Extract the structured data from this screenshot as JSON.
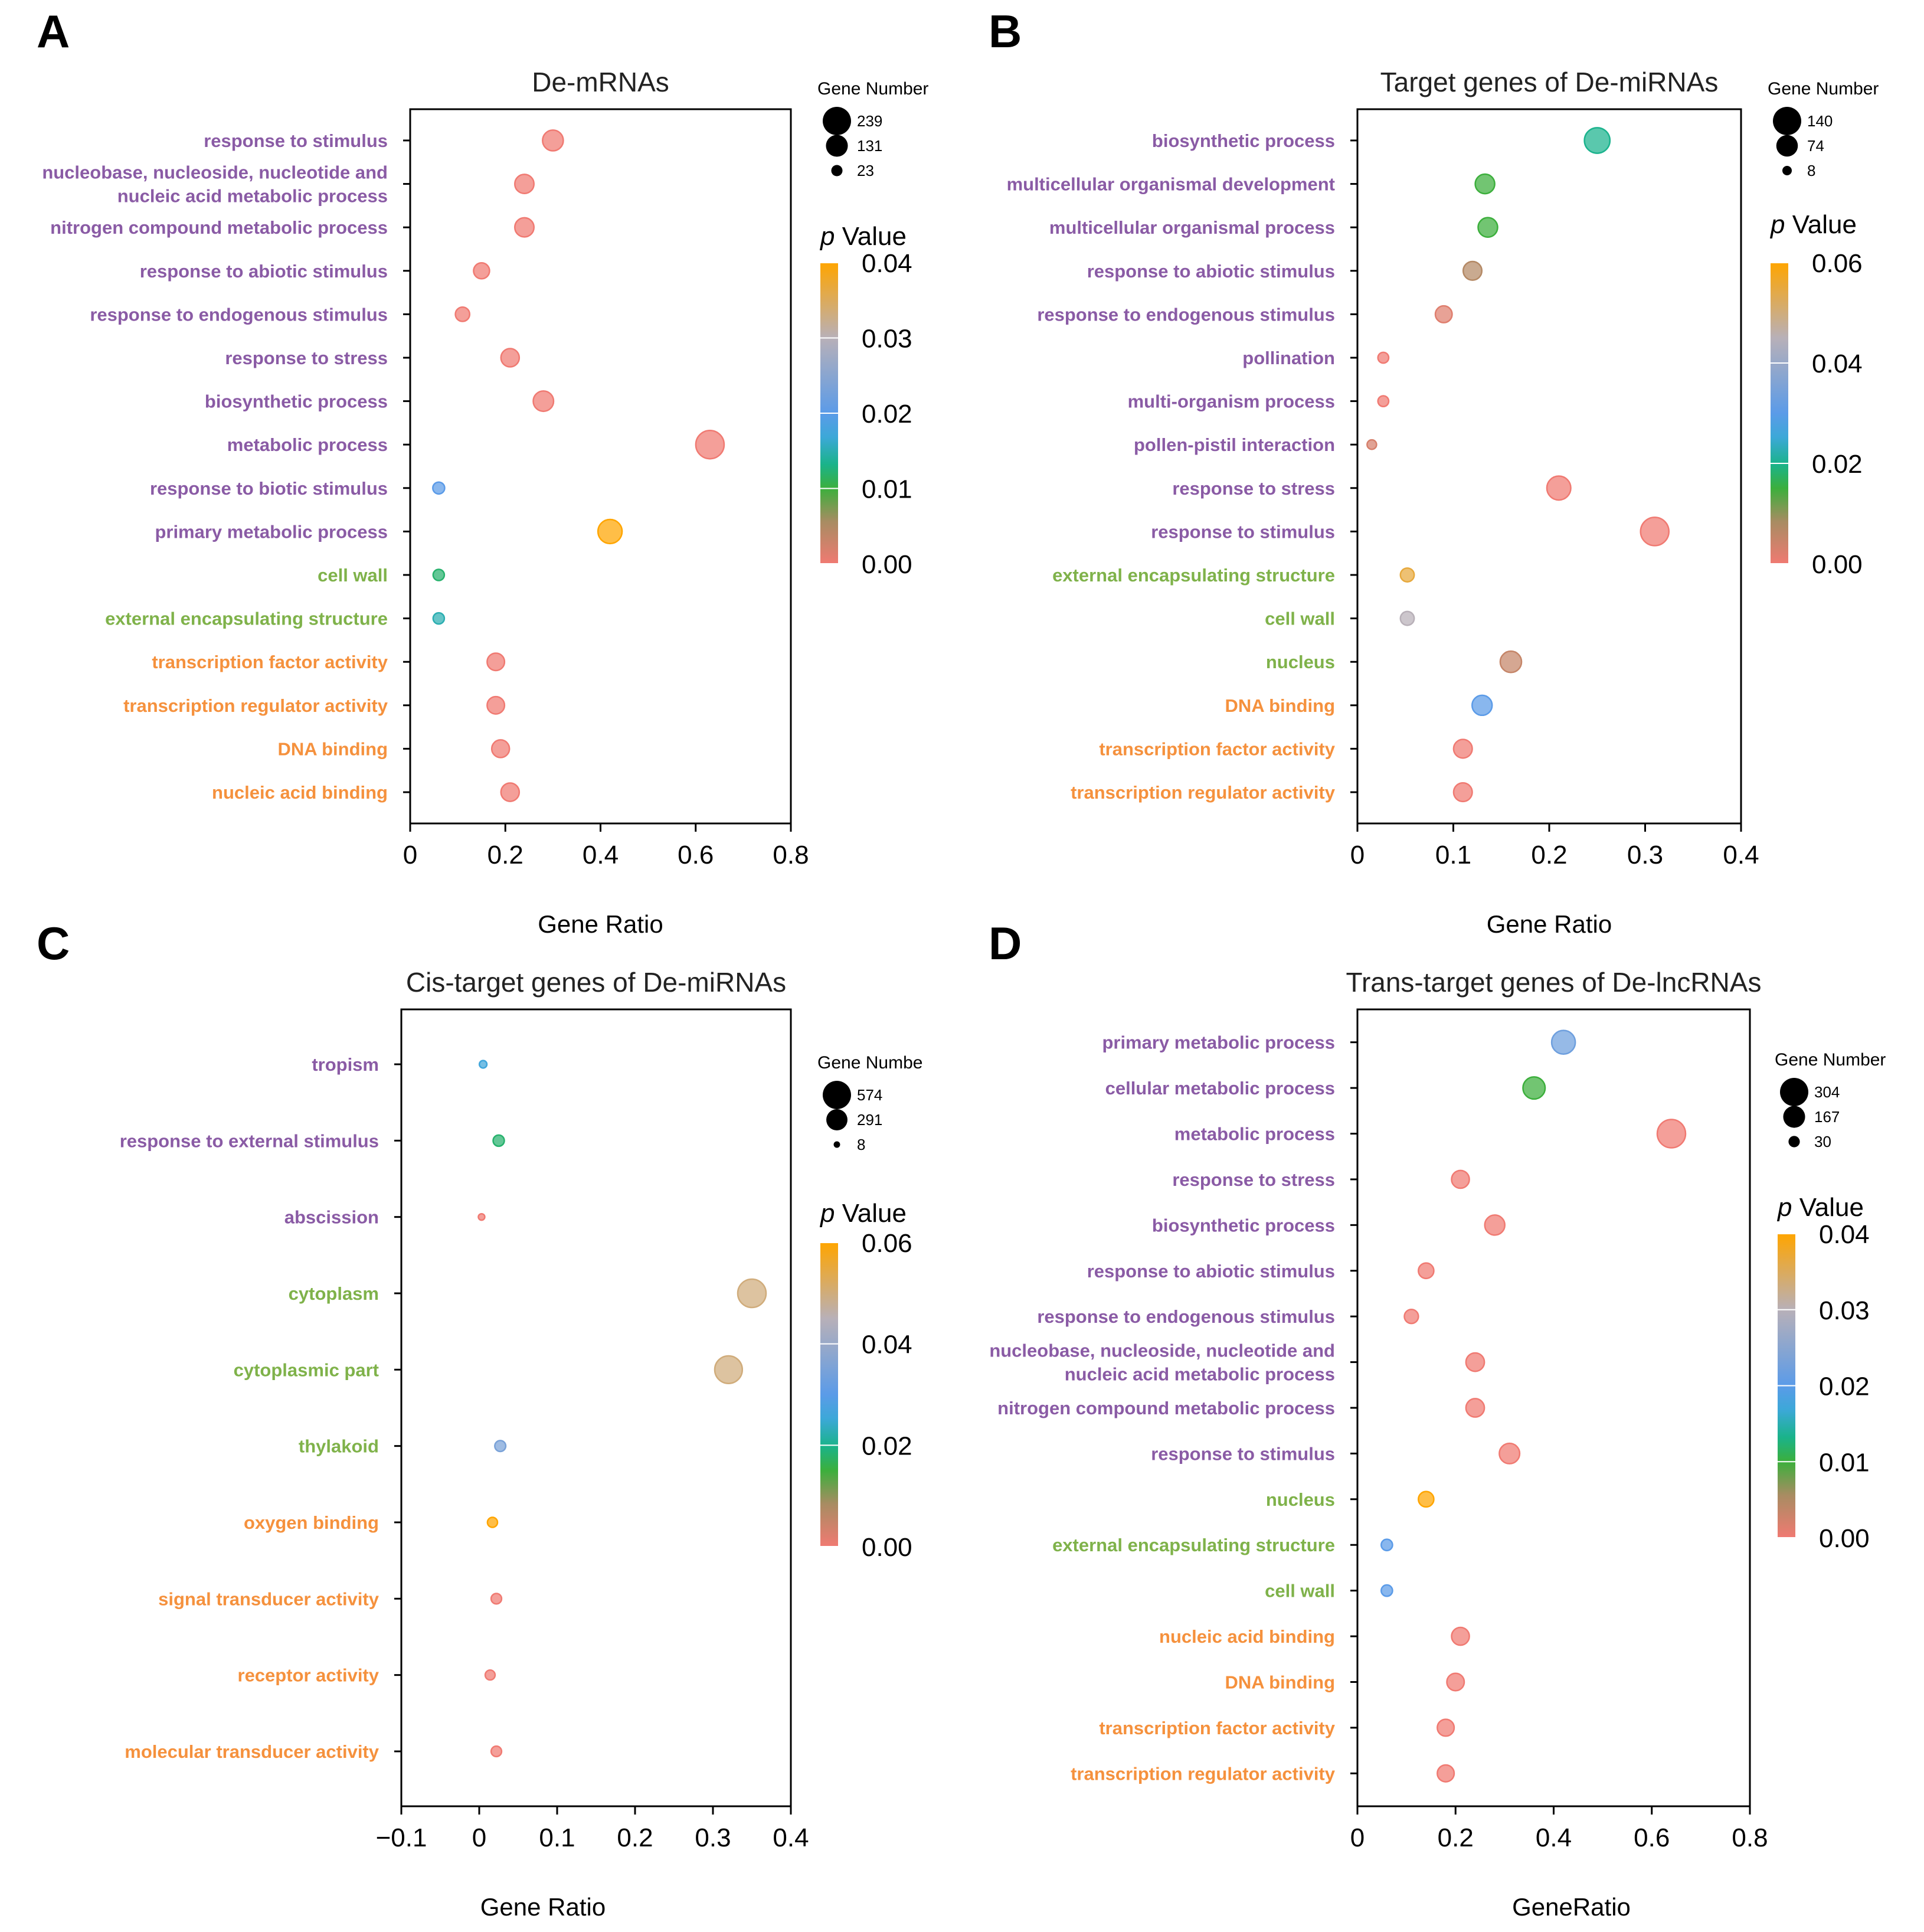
{
  "colors": {
    "bp": "#8a5ba5",
    "cc": "#7fb24a",
    "mf": "#f5913d"
  },
  "chart_data": [
    {
      "letter": "A",
      "type": "scatter",
      "title": "De-mRNAs",
      "xlabel": "Gene Ratio",
      "ylabel": "",
      "xlim": [
        0,
        0.8
      ],
      "xticks": [
        0,
        0.2,
        0.4,
        0.6,
        0.8
      ],
      "xtick_labels": [
        "0",
        "0.2",
        "0.4",
        "0.6",
        "0.8"
      ],
      "size_legend": {
        "title": "Gene Number",
        "values": [
          239,
          131,
          23
        ]
      },
      "color_legend": {
        "title_p": "p",
        "title_rest": " Value",
        "ticks": [
          0.04,
          0.03,
          0.02,
          0.01,
          0.0
        ],
        "tick_labels": [
          "0.04",
          "0.03",
          "0.02",
          "0.01",
          "0.00"
        ],
        "max": 0.04
      },
      "terms": [
        {
          "label": [
            "response to stimulus"
          ],
          "category": "bp",
          "ratio": 0.3,
          "count": 115,
          "p": 0.0
        },
        {
          "label": [
            "nucleobase, nucleoside, nucleotide and",
            "nucleic acid metabolic process"
          ],
          "category": "bp",
          "ratio": 0.24,
          "count": 95,
          "p": 0.0
        },
        {
          "label": [
            "nitrogen compound metabolic process"
          ],
          "category": "bp",
          "ratio": 0.24,
          "count": 95,
          "p": 0.0
        },
        {
          "label": [
            "response to abiotic stimulus"
          ],
          "category": "bp",
          "ratio": 0.15,
          "count": 60,
          "p": 0.0
        },
        {
          "label": [
            "response to endogenous stimulus"
          ],
          "category": "bp",
          "ratio": 0.11,
          "count": 45,
          "p": 0.0
        },
        {
          "label": [
            "response to stress"
          ],
          "category": "bp",
          "ratio": 0.21,
          "count": 85,
          "p": 0.0
        },
        {
          "label": [
            "biosynthetic process"
          ],
          "category": "bp",
          "ratio": 0.28,
          "count": 110,
          "p": 0.0
        },
        {
          "label": [
            "metabolic process"
          ],
          "category": "bp",
          "ratio": 0.63,
          "count": 239,
          "p": 0.0
        },
        {
          "label": [
            "response to biotic stimulus"
          ],
          "category": "bp",
          "ratio": 0.06,
          "count": 27,
          "p": 0.02
        },
        {
          "label": [
            "primary metabolic process"
          ],
          "category": "bp",
          "ratio": 0.42,
          "count": 165,
          "p": 0.04
        },
        {
          "label": [
            "cell wall"
          ],
          "category": "cc",
          "ratio": 0.06,
          "count": 23,
          "p": 0.012
        },
        {
          "label": [
            "external encapsulating structure"
          ],
          "category": "cc",
          "ratio": 0.06,
          "count": 23,
          "p": 0.015
        },
        {
          "label": [
            "transcription factor activity"
          ],
          "category": "mf",
          "ratio": 0.18,
          "count": 75,
          "p": 0.0
        },
        {
          "label": [
            "transcription regulator activity"
          ],
          "category": "mf",
          "ratio": 0.18,
          "count": 75,
          "p": 0.0
        },
        {
          "label": [
            "DNA binding"
          ],
          "category": "mf",
          "ratio": 0.19,
          "count": 78,
          "p": 0.0
        },
        {
          "label": [
            "nucleic acid binding"
          ],
          "category": "mf",
          "ratio": 0.21,
          "count": 85,
          "p": 0.0
        }
      ]
    },
    {
      "letter": "B",
      "type": "scatter",
      "title": "Target genes of De-miRNAs",
      "xlabel": "Gene Ratio",
      "ylabel": "",
      "xlim": [
        0,
        0.4
      ],
      "xticks": [
        0,
        0.1,
        0.2,
        0.3,
        0.4
      ],
      "xtick_labels": [
        "0",
        "0.1",
        "0.2",
        "0.3",
        "0.4"
      ],
      "size_legend": {
        "title": "Gene Number",
        "values": [
          140,
          74,
          8
        ]
      },
      "color_legend": {
        "title_p": "p",
        "title_rest": " Value",
        "ticks": [
          0.06,
          0.04,
          0.02,
          0.0
        ],
        "tick_labels": [
          "0.06",
          "0.04",
          "0.02",
          "0.00"
        ],
        "max": 0.06
      },
      "terms": [
        {
          "label": [
            "biosynthetic process"
          ],
          "category": "bp",
          "ratio": 0.25,
          "count": 110,
          "p": 0.02
        },
        {
          "label": [
            "multicellular organismal development"
          ],
          "category": "bp",
          "ratio": 0.133,
          "count": 58,
          "p": 0.015
        },
        {
          "label": [
            "multicellular organismal process"
          ],
          "category": "bp",
          "ratio": 0.136,
          "count": 58,
          "p": 0.015
        },
        {
          "label": [
            "response to abiotic stimulus"
          ],
          "category": "bp",
          "ratio": 0.12,
          "count": 52,
          "p": 0.007
        },
        {
          "label": [
            "response to endogenous stimulus"
          ],
          "category": "bp",
          "ratio": 0.09,
          "count": 40,
          "p": 0.002
        },
        {
          "label": [
            "pollination"
          ],
          "category": "bp",
          "ratio": 0.027,
          "count": 12,
          "p": 0.0
        },
        {
          "label": [
            "multi-organism process"
          ],
          "category": "bp",
          "ratio": 0.027,
          "count": 12,
          "p": 0.0
        },
        {
          "label": [
            "pollen-pistil interaction"
          ],
          "category": "bp",
          "ratio": 0.015,
          "count": 8,
          "p": 0.003
        },
        {
          "label": [
            "response to stress"
          ],
          "category": "bp",
          "ratio": 0.21,
          "count": 95,
          "p": 0.0
        },
        {
          "label": [
            "response to stimulus"
          ],
          "category": "bp",
          "ratio": 0.31,
          "count": 140,
          "p": 0.0
        },
        {
          "label": [
            "external encapsulating structure"
          ],
          "category": "cc",
          "ratio": 0.052,
          "count": 24,
          "p": 0.055
        },
        {
          "label": [
            "cell wall"
          ],
          "category": "cc",
          "ratio": 0.052,
          "count": 24,
          "p": 0.045
        },
        {
          "label": [
            "nucleus"
          ],
          "category": "cc",
          "ratio": 0.16,
          "count": 72,
          "p": 0.005
        },
        {
          "label": [
            "DNA binding"
          ],
          "category": "mf",
          "ratio": 0.13,
          "count": 62,
          "p": 0.03
        },
        {
          "label": [
            "transcription factor activity"
          ],
          "category": "mf",
          "ratio": 0.11,
          "count": 52,
          "p": 0.0
        },
        {
          "label": [
            "transcription regulator activity"
          ],
          "category": "mf",
          "ratio": 0.11,
          "count": 52,
          "p": 0.0
        }
      ]
    },
    {
      "letter": "C",
      "type": "scatter",
      "title": "Cis-target genes of De-miRNAs",
      "xlabel": "Gene Ratio",
      "ylabel": "",
      "xlim": [
        -0.1,
        0.4
      ],
      "xticks": [
        -0.1,
        0,
        0.1,
        0.2,
        0.3,
        0.4
      ],
      "xtick_labels": [
        "−0.1",
        "0",
        "0.1",
        "0.2",
        "0.3",
        "0.4"
      ],
      "size_legend": {
        "title": "Gene Numbe",
        "values": [
          574,
          291,
          8
        ]
      },
      "color_legend": {
        "title_p": "p",
        "title_rest": " Value",
        "ticks": [
          0.06,
          0.04,
          0.02,
          0.0
        ],
        "tick_labels": [
          "0.06",
          "0.04",
          "0.02",
          "0.00"
        ],
        "max": 0.06
      },
      "terms": [
        {
          "label": [
            "tropism"
          ],
          "category": "bp",
          "ratio": 0.005,
          "count": 15,
          "p": 0.026
        },
        {
          "label": [
            "response to external stimulus"
          ],
          "category": "bp",
          "ratio": 0.025,
          "count": 55,
          "p": 0.018
        },
        {
          "label": [
            "abscission"
          ],
          "category": "bp",
          "ratio": 0.003,
          "count": 8,
          "p": 0.0
        },
        {
          "label": [
            "cytoplasm"
          ],
          "category": "cc",
          "ratio": 0.35,
          "count": 574,
          "p": 0.05
        },
        {
          "label": [
            "cytoplasmic part"
          ],
          "category": "cc",
          "ratio": 0.32,
          "count": 540,
          "p": 0.05
        },
        {
          "label": [
            "thylakoid"
          ],
          "category": "cc",
          "ratio": 0.027,
          "count": 52,
          "p": 0.035
        },
        {
          "label": [
            "oxygen binding"
          ],
          "category": "mf",
          "ratio": 0.017,
          "count": 40,
          "p": 0.065
        },
        {
          "label": [
            "signal transducer activity"
          ],
          "category": "mf",
          "ratio": 0.022,
          "count": 45,
          "p": 0.0
        },
        {
          "label": [
            "receptor activity"
          ],
          "category": "mf",
          "ratio": 0.014,
          "count": 38,
          "p": 0.0
        },
        {
          "label": [
            "molecular transducer activity"
          ],
          "category": "mf",
          "ratio": 0.022,
          "count": 45,
          "p": 0.0
        }
      ]
    },
    {
      "letter": "D",
      "type": "scatter",
      "title": "Trans-target genes of De-lncRNAs",
      "xlabel": "GeneRatio",
      "ylabel": "",
      "xlim": [
        0,
        0.8
      ],
      "xticks": [
        0,
        0.2,
        0.4,
        0.6,
        0.8
      ],
      "xtick_labels": [
        "0",
        "0.2",
        "0.4",
        "0.6",
        "0.8"
      ],
      "size_legend": {
        "title": "Gene Number",
        "values": [
          304,
          167,
          30
        ]
      },
      "color_legend": {
        "title_p": "p",
        "title_rest": " Value",
        "ticks": [
          0.04,
          0.03,
          0.02,
          0.01,
          0.0
        ],
        "tick_labels": [
          "0.04",
          "0.03",
          "0.02",
          "0.01",
          "0.00"
        ],
        "max": 0.04
      },
      "terms": [
        {
          "label": [
            "primary metabolic process"
          ],
          "category": "bp",
          "ratio": 0.42,
          "count": 200,
          "p": 0.022
        },
        {
          "label": [
            "cellular metabolic process"
          ],
          "category": "bp",
          "ratio": 0.36,
          "count": 172,
          "p": 0.01
        },
        {
          "label": [
            "metabolic process"
          ],
          "category": "bp",
          "ratio": 0.64,
          "count": 304,
          "p": 0.0
        },
        {
          "label": [
            "response to stress"
          ],
          "category": "bp",
          "ratio": 0.21,
          "count": 100,
          "p": 0.0
        },
        {
          "label": [
            "biosynthetic process"
          ],
          "category": "bp",
          "ratio": 0.28,
          "count": 135,
          "p": 0.0
        },
        {
          "label": [
            "response to abiotic stimulus"
          ],
          "category": "bp",
          "ratio": 0.14,
          "count": 70,
          "p": 0.0
        },
        {
          "label": [
            "response to endogenous stimulus"
          ],
          "category": "bp",
          "ratio": 0.11,
          "count": 55,
          "p": 0.0
        },
        {
          "label": [
            "nucleobase, nucleoside, nucleotide and",
            "nucleic acid metabolic process"
          ],
          "category": "bp",
          "ratio": 0.24,
          "count": 110,
          "p": 0.0
        },
        {
          "label": [
            "nitrogen compound metabolic process"
          ],
          "category": "bp",
          "ratio": 0.24,
          "count": 110,
          "p": 0.0
        },
        {
          "label": [
            "response to stimulus"
          ],
          "category": "bp",
          "ratio": 0.31,
          "count": 140,
          "p": 0.0
        },
        {
          "label": [
            "nucleus"
          ],
          "category": "cc",
          "ratio": 0.14,
          "count": 70,
          "p": 0.04
        },
        {
          "label": [
            "external encapsulating structure"
          ],
          "category": "cc",
          "ratio": 0.06,
          "count": 30,
          "p": 0.02
        },
        {
          "label": [
            "cell wall"
          ],
          "category": "cc",
          "ratio": 0.06,
          "count": 30,
          "p": 0.02
        },
        {
          "label": [
            "nucleic acid binding"
          ],
          "category": "mf",
          "ratio": 0.21,
          "count": 100,
          "p": 0.0
        },
        {
          "label": [
            "DNA binding"
          ],
          "category": "mf",
          "ratio": 0.2,
          "count": 95,
          "p": 0.0
        },
        {
          "label": [
            "transcription factor activity"
          ],
          "category": "mf",
          "ratio": 0.18,
          "count": 88,
          "p": 0.0
        },
        {
          "label": [
            "transcription regulator activity"
          ],
          "category": "mf",
          "ratio": 0.18,
          "count": 88,
          "p": 0.0
        }
      ]
    }
  ]
}
